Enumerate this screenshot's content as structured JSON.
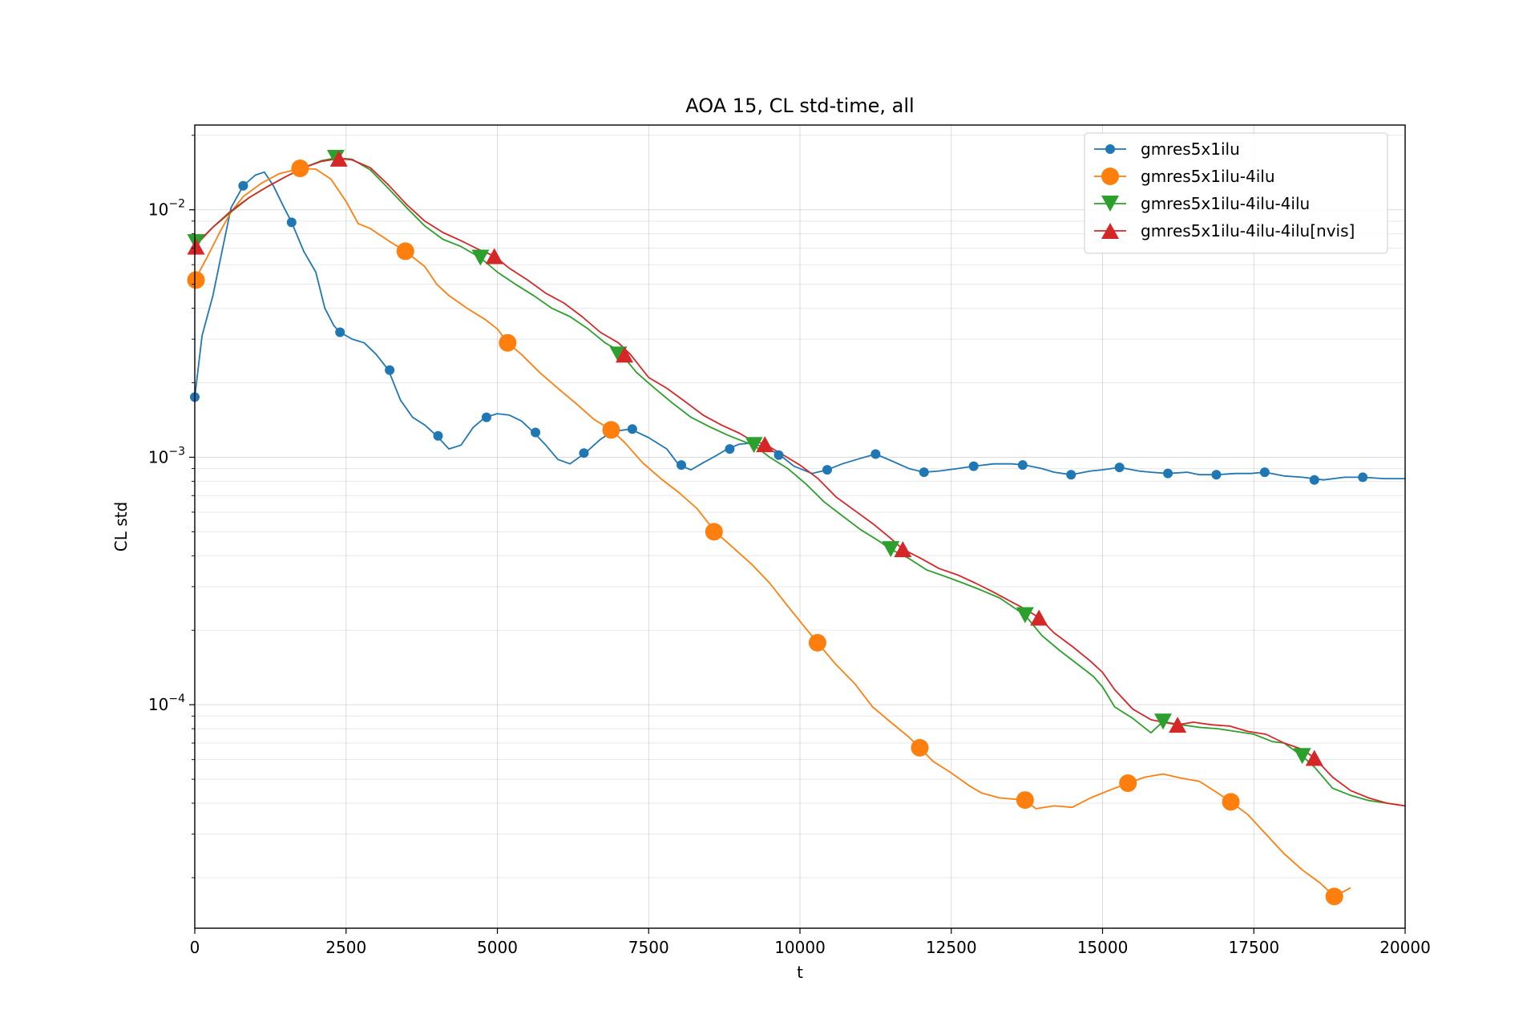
{
  "chart_data": {
    "type": "line",
    "title": "AOA 15, CL std-time, all",
    "xlabel": "t",
    "ylabel": "CL std",
    "xlim": [
      0,
      20000
    ],
    "ylim": [
      1.25e-05,
      0.022
    ],
    "yscale": "log",
    "grid": "major and minor",
    "legend_position": "top-right",
    "x_ticks": [
      0,
      2500,
      5000,
      7500,
      10000,
      12500,
      15000,
      17500,
      20000
    ],
    "x_tick_labels": [
      "0",
      "2500",
      "5000",
      "7500",
      "10000",
      "12500",
      "15000",
      "17500",
      "20000"
    ],
    "y_ticks": [
      0.0001,
      0.001,
      0.01
    ],
    "y_tick_labels": [
      {
        "base": "10",
        "exp": "−4"
      },
      {
        "base": "10",
        "exp": "−3"
      },
      {
        "base": "10",
        "exp": "−2"
      }
    ],
    "series": [
      {
        "name": "gmres5x1ilu",
        "color": "#1f77b4",
        "marker": "circle-small",
        "x": [
          0,
          120,
          300,
          450,
          600,
          800,
          1000,
          1150,
          1300,
          1450,
          1600,
          1800,
          2000,
          2150,
          2300,
          2400,
          2600,
          2800,
          3000,
          3200,
          3400,
          3600,
          3800,
          4000,
          4200,
          4400,
          4600,
          4800,
          5000,
          5200,
          5400,
          5600,
          5800,
          6000,
          6200,
          6450,
          6700,
          6900,
          7200,
          7500,
          7800,
          8000,
          8200,
          8400,
          8600,
          8800,
          9000,
          9200,
          9400,
          9650,
          9900,
          10200,
          10450,
          10700,
          11000,
          11250,
          11500,
          11800,
          12050,
          12300,
          12600,
          12870,
          13200,
          13500,
          13720,
          14000,
          14200,
          14480,
          14800,
          15000,
          15280,
          15600,
          15800,
          16080,
          16400,
          16600,
          16880,
          17200,
          17450,
          17680,
          18000,
          18300,
          18650,
          19000,
          19300,
          19650,
          20000
        ],
        "y": [
          0.00175,
          0.0031,
          0.0045,
          0.0068,
          0.0102,
          0.0125,
          0.0138,
          0.0142,
          0.0125,
          0.0105,
          0.0089,
          0.0068,
          0.0056,
          0.004,
          0.0034,
          0.0032,
          0.003,
          0.0029,
          0.0026,
          0.00225,
          0.0017,
          0.00145,
          0.00135,
          0.00122,
          0.00108,
          0.00112,
          0.00132,
          0.00145,
          0.0015,
          0.00148,
          0.0014,
          0.00126,
          0.00112,
          0.00098,
          0.00094,
          0.00104,
          0.00118,
          0.00127,
          0.0013,
          0.0012,
          0.00108,
          0.00093,
          0.00089,
          0.00095,
          0.00101,
          0.00108,
          0.00113,
          0.00114,
          0.0011,
          0.00103,
          0.00092,
          0.00086,
          0.00089,
          0.00094,
          0.00099,
          0.00103,
          0.00097,
          0.0009,
          0.00087,
          0.00088,
          0.0009,
          0.00092,
          0.00094,
          0.00094,
          0.00093,
          0.0009,
          0.00087,
          0.00085,
          0.00088,
          0.00089,
          0.00091,
          0.00088,
          0.00087,
          0.00086,
          0.00087,
          0.00085,
          0.00085,
          0.00086,
          0.00086,
          0.00087,
          0.00084,
          0.00083,
          0.00081,
          0.00083,
          0.00083,
          0.00082,
          0.00082
        ]
      },
      {
        "name": "gmres5x1ilu-4ilu",
        "color": "#ff7f0e",
        "marker": "circle",
        "x": [
          0,
          200,
          400,
          600,
          800,
          1100,
          1400,
          1750,
          2000,
          2250,
          2500,
          2700,
          2900,
          3200,
          3480,
          3800,
          4000,
          4200,
          4500,
          4800,
          5000,
          5170,
          5400,
          5700,
          6000,
          6300,
          6600,
          6880,
          7100,
          7400,
          7700,
          8000,
          8300,
          8600,
          8900,
          9200,
          9500,
          9800,
          10050,
          10290,
          10600,
          10900,
          11200,
          11500,
          11800,
          11980,
          12200,
          12500,
          12800,
          13000,
          13300,
          13720,
          13900,
          14200,
          14500,
          14800,
          15100,
          15420,
          15700,
          16000,
          16300,
          16600,
          16900,
          17120,
          17400,
          17700,
          18000,
          18300,
          18600,
          18830,
          19100
        ],
        "y": [
          0.0052,
          0.0064,
          0.008,
          0.0098,
          0.0113,
          0.0128,
          0.014,
          0.0147,
          0.0146,
          0.0133,
          0.0108,
          0.0088,
          0.0084,
          0.0075,
          0.0068,
          0.0059,
          0.005,
          0.0045,
          0.004,
          0.0036,
          0.0033,
          0.0029,
          0.0026,
          0.0022,
          0.0019,
          0.00165,
          0.00142,
          0.00129,
          0.00115,
          0.00095,
          0.00082,
          0.00072,
          0.00062,
          0.0005,
          0.00043,
          0.00037,
          0.00031,
          0.00025,
          0.00021,
          0.000178,
          0.000145,
          0.000122,
          9.8e-05,
          8.5e-05,
          7.4e-05,
          6.7e-05,
          5.9e-05,
          5.3e-05,
          4.7e-05,
          4.4e-05,
          4.2e-05,
          4.12e-05,
          3.8e-05,
          3.9e-05,
          3.85e-05,
          4.2e-05,
          4.5e-05,
          4.82e-05,
          5.1e-05,
          5.25e-05,
          5.05e-05,
          4.9e-05,
          4.4e-05,
          4.05e-05,
          3.6e-05,
          3e-05,
          2.5e-05,
          2.15e-05,
          1.9e-05,
          1.68e-05,
          1.82e-05
        ]
      },
      {
        "name": "gmres5x1ilu-4ilu-4ilu",
        "color": "#2ca02c",
        "marker": "triangle-down",
        "x": [
          0,
          300,
          600,
          900,
          1200,
          1500,
          1800,
          2100,
          2330,
          2600,
          2900,
          3200,
          3500,
          3800,
          4100,
          4400,
          4720,
          5000,
          5300,
          5600,
          5900,
          6200,
          6500,
          6780,
          7000,
          7300,
          7600,
          7900,
          8200,
          8500,
          8800,
          9100,
          9240,
          9500,
          9800,
          10100,
          10400,
          10700,
          11000,
          11300,
          11500,
          11800,
          12100,
          12400,
          12700,
          13000,
          13300,
          13500,
          13720,
          14000,
          14300,
          14600,
          14850,
          15000,
          15200,
          15500,
          15800,
          16000,
          16300,
          16600,
          16900,
          17200,
          17500,
          17800,
          18000,
          18300,
          18500,
          18800,
          19100,
          19400,
          19700,
          20000
        ],
        "y": [
          0.0072,
          0.0085,
          0.0098,
          0.0112,
          0.0124,
          0.0136,
          0.0148,
          0.0158,
          0.0162,
          0.016,
          0.0145,
          0.0122,
          0.0102,
          0.0086,
          0.0076,
          0.0071,
          0.0064,
          0.0056,
          0.005,
          0.0045,
          0.004,
          0.0037,
          0.0033,
          0.0029,
          0.0027,
          0.0022,
          0.0019,
          0.00165,
          0.00145,
          0.00133,
          0.00123,
          0.00115,
          0.00112,
          0.001,
          0.0009,
          0.00078,
          0.00066,
          0.00058,
          0.00051,
          0.00046,
          0.000425,
          0.00039,
          0.00035,
          0.00033,
          0.00031,
          0.00029,
          0.00027,
          0.00025,
          0.00023,
          0.00019,
          0.000165,
          0.000145,
          0.00013,
          0.000118,
          9.8e-05,
          8.8e-05,
          7.7e-05,
          8.55e-05,
          8.3e-05,
          8.1e-05,
          8e-05,
          7.8e-05,
          7.6e-05,
          7.1e-05,
          7e-05,
          6.2e-05,
          5.6e-05,
          4.6e-05,
          4.3e-05,
          4.1e-05,
          4e-05,
          3.9e-05
        ]
      },
      {
        "name": "gmres5x1ilu-4ilu-4ilu[nvis]",
        "color": "#d62728",
        "marker": "triangle-up",
        "x": [
          0,
          300,
          600,
          900,
          1200,
          1500,
          1800,
          2100,
          2380,
          2600,
          2900,
          3200,
          3500,
          3800,
          4100,
          4400,
          4700,
          4950,
          5200,
          5500,
          5800,
          6100,
          6400,
          6700,
          7000,
          7200,
          7500,
          7800,
          8100,
          8400,
          8700,
          9000,
          9200,
          9420,
          9700,
          10000,
          10300,
          10600,
          10900,
          11200,
          11500,
          11700,
          12000,
          12300,
          12600,
          12900,
          13200,
          13500,
          13700,
          13950,
          14200,
          14500,
          14800,
          15000,
          15200,
          15500,
          15800,
          16000,
          16240,
          16500,
          16800,
          17100,
          17400,
          17700,
          18000,
          18300,
          18500,
          18800,
          19100,
          19400,
          19700,
          20000
        ],
        "y": [
          0.0071,
          0.0085,
          0.0099,
          0.0112,
          0.0124,
          0.0136,
          0.0148,
          0.0157,
          0.0161,
          0.0159,
          0.0148,
          0.0126,
          0.0105,
          0.009,
          0.0081,
          0.0075,
          0.0069,
          0.0065,
          0.0058,
          0.0052,
          0.0046,
          0.0042,
          0.0037,
          0.0032,
          0.0029,
          0.0026,
          0.0021,
          0.0019,
          0.00168,
          0.00148,
          0.00135,
          0.00125,
          0.00117,
          0.00113,
          0.00103,
          0.00093,
          0.00082,
          0.00069,
          0.00061,
          0.00054,
          0.00047,
          0.000425,
          0.00039,
          0.000355,
          0.000335,
          0.00031,
          0.000285,
          0.00026,
          0.000245,
          0.000225,
          0.000195,
          0.000172,
          0.00015,
          0.000135,
          0.000115,
          9.6e-05,
          8.7e-05,
          8.5e-05,
          8.3e-05,
          8.5e-05,
          8.3e-05,
          8.2e-05,
          7.8e-05,
          7.6e-05,
          7e-05,
          6.6e-05,
          6.1e-05,
          5.1e-05,
          4.5e-05,
          4.2e-05,
          4e-05,
          3.9e-05
        ]
      }
    ],
    "markers": [
      {
        "series": 0,
        "x": [
          0,
          800,
          1600,
          2400,
          3220,
          4020,
          4820,
          5630,
          6430,
          7230,
          8040,
          8840,
          9650,
          10450,
          11250,
          12050,
          12870,
          13680,
          14480,
          15280,
          16080,
          16880,
          17680,
          18500,
          19300
        ],
        "y": [
          0.00175,
          0.0125,
          0.0089,
          0.0032,
          0.00225,
          0.00122,
          0.00145,
          0.00126,
          0.00104,
          0.0013,
          0.00093,
          0.00108,
          0.00102,
          0.00089,
          0.00103,
          0.00087,
          0.00092,
          0.00093,
          0.00085,
          0.00091,
          0.00086,
          0.00085,
          0.00087,
          0.00081,
          0.00083
        ]
      },
      {
        "series": 1,
        "x": [
          20,
          1740,
          3480,
          5170,
          6880,
          8580,
          10290,
          11980,
          13720,
          15420,
          17120,
          18830
        ],
        "y": [
          0.0052,
          0.0147,
          0.0068,
          0.0029,
          0.00129,
          0.0005,
          0.000178,
          6.7e-05,
          4.12e-05,
          4.82e-05,
          4.05e-05,
          1.68e-05
        ]
      },
      {
        "series": 2,
        "x": [
          20,
          2330,
          4720,
          7000,
          9240,
          11500,
          13720,
          16000,
          18300
        ],
        "y": [
          0.0074,
          0.0162,
          0.0064,
          0.0026,
          0.00112,
          0.000425,
          0.00023,
          8.55e-05,
          6.2e-05
        ]
      },
      {
        "series": 3,
        "x": [
          20,
          2380,
          4950,
          7100,
          9420,
          11700,
          13950,
          16240,
          18500
        ],
        "y": [
          0.0071,
          0.0161,
          0.0065,
          0.0026,
          0.00113,
          0.000425,
          0.000225,
          8.3e-05,
          6.1e-05
        ]
      }
    ]
  }
}
